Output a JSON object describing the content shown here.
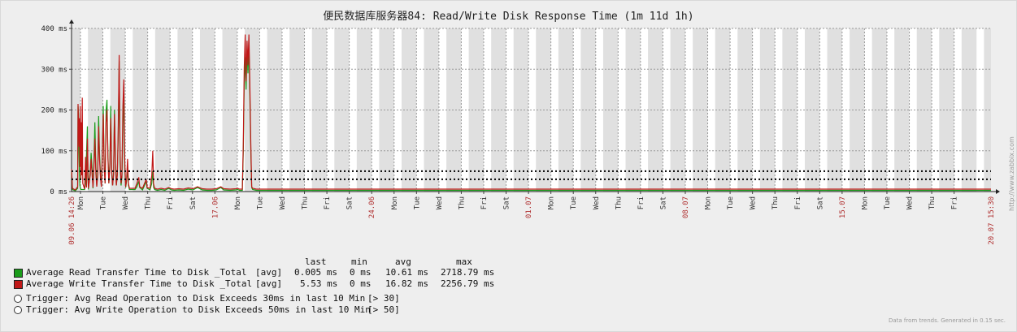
{
  "chart_data": {
    "type": "line",
    "title": "便民数据库服务器84: Read/Write Disk Response Time (1m 11d 1h)",
    "y_ticks": [
      "0 ms",
      "100 ms",
      "200 ms",
      "300 ms",
      "400 ms"
    ],
    "ylim": [
      0,
      400
    ],
    "y_unit": "ms",
    "x_range": [
      "2022-06-09 14:26",
      "2022-07-20 15:30"
    ],
    "x_start_label": "09.06 14:26",
    "x_end_label": "20.07 15:30",
    "x_day_labels": [
      "Mon",
      "Tue",
      "Wed",
      "Thu",
      "Fri",
      "Sat",
      "17.06",
      "Mon",
      "Tue",
      "Wed",
      "Thu",
      "Fri",
      "Sat",
      "24.06",
      "Mon",
      "Tue",
      "Wed",
      "Thu",
      "Fri",
      "Sat",
      "01.07",
      "Mon",
      "Tue",
      "Wed",
      "Thu",
      "Fri",
      "Sat",
      "08.07",
      "Mon",
      "Tue",
      "Wed",
      "Thu",
      "Fri",
      "Sat",
      "15.07",
      "Mon",
      "Tue",
      "Wed",
      "Thu",
      "Fri"
    ],
    "x_day_label_colors": {
      "date": "#b03030",
      "day": "#333333"
    },
    "grid": true,
    "background": {
      "day": "#e0e0e0",
      "night": "#ffffff"
    },
    "series": [
      {
        "name": "Average Read Transfer Time to Disk _Total",
        "color": "#1a9c1a",
        "points": [
          [
            0,
            50
          ],
          [
            0.3,
            40
          ],
          [
            1,
            5
          ],
          [
            4,
            2
          ],
          [
            6.5,
            8
          ],
          [
            7,
            210
          ],
          [
            7.5,
            190
          ],
          [
            8,
            95
          ],
          [
            8.5,
            40
          ],
          [
            9,
            15
          ],
          [
            10,
            5
          ],
          [
            12,
            5
          ],
          [
            14,
            5
          ],
          [
            15,
            20
          ],
          [
            17,
            160
          ],
          [
            17.5,
            40
          ],
          [
            18,
            5
          ],
          [
            20,
            50
          ],
          [
            21,
            95
          ],
          [
            22,
            55
          ],
          [
            23,
            8
          ],
          [
            24,
            80
          ],
          [
            25,
            170
          ],
          [
            26,
            60
          ],
          [
            27,
            15
          ],
          [
            28,
            45
          ],
          [
            29,
            185
          ],
          [
            30,
            95
          ],
          [
            31,
            40
          ],
          [
            32,
            15
          ],
          [
            33,
            95
          ],
          [
            34,
            210
          ],
          [
            35,
            60
          ],
          [
            36,
            20
          ],
          [
            37,
            200
          ],
          [
            38,
            225
          ],
          [
            39,
            90
          ],
          [
            40,
            20
          ],
          [
            41,
            70
          ],
          [
            42,
            210
          ],
          [
            43,
            50
          ],
          [
            44,
            15
          ],
          [
            45,
            45
          ],
          [
            46,
            200
          ],
          [
            47,
            75
          ],
          [
            48,
            15
          ],
          [
            49,
            45
          ],
          [
            50,
            130
          ],
          [
            51,
            320
          ],
          [
            52,
            70
          ],
          [
            53,
            15
          ],
          [
            54,
            35
          ],
          [
            55,
            160
          ],
          [
            56,
            260
          ],
          [
            57,
            60
          ],
          [
            58,
            10
          ],
          [
            59,
            25
          ],
          [
            60,
            55
          ],
          [
            61,
            15
          ],
          [
            62,
            5
          ],
          [
            64,
            5
          ],
          [
            68,
            5
          ],
          [
            70,
            12
          ],
          [
            72,
            25
          ],
          [
            73,
            10
          ],
          [
            76,
            4
          ],
          [
            80,
            25
          ],
          [
            81,
            8
          ],
          [
            84,
            4
          ],
          [
            86,
            20
          ],
          [
            87,
            50
          ],
          [
            88,
            10
          ],
          [
            89,
            5
          ],
          [
            92,
            3
          ],
          [
            96,
            5
          ],
          [
            100,
            3
          ],
          [
            104,
            8
          ],
          [
            107,
            4
          ],
          [
            110,
            3
          ],
          [
            115,
            4
          ],
          [
            120,
            3
          ],
          [
            125,
            6
          ],
          [
            130,
            4
          ],
          [
            135,
            10
          ],
          [
            140,
            4
          ],
          [
            145,
            3
          ],
          [
            150,
            3
          ],
          [
            155,
            4
          ],
          [
            160,
            10
          ],
          [
            163,
            4
          ],
          [
            170,
            3
          ],
          [
            176,
            4
          ],
          [
            178,
            5
          ],
          [
            180,
            3
          ],
          [
            183,
            3
          ],
          [
            184,
            100
          ],
          [
            185,
            260
          ],
          [
            186,
            330
          ],
          [
            187,
            250
          ],
          [
            188,
            350
          ],
          [
            189,
            290
          ],
          [
            190,
            360
          ],
          [
            191,
            240
          ],
          [
            192,
            100
          ],
          [
            193,
            10
          ],
          [
            194,
            5
          ],
          [
            198,
            3
          ],
          [
            210,
            3
          ],
          [
            230,
            3
          ],
          [
            260,
            3
          ],
          [
            290,
            3
          ],
          [
            320,
            3
          ],
          [
            350,
            3
          ],
          [
            380,
            3
          ],
          [
            410,
            3
          ],
          [
            440,
            3
          ],
          [
            470,
            3
          ],
          [
            500,
            3
          ],
          [
            530,
            3
          ],
          [
            560,
            3
          ],
          [
            590,
            3
          ],
          [
            620,
            3
          ],
          [
            650,
            3
          ],
          [
            680,
            3
          ],
          [
            710,
            3
          ],
          [
            740,
            3
          ],
          [
            770,
            3
          ],
          [
            800,
            3
          ],
          [
            830,
            3
          ],
          [
            860,
            3
          ],
          [
            890,
            3
          ],
          [
            920,
            3
          ],
          [
            950,
            3
          ],
          [
            985,
            3
          ]
        ]
      },
      {
        "name": "Average Write Transfer Time to Disk _Total",
        "color": "#c01818",
        "points": [
          [
            0,
            55
          ],
          [
            0.3,
            45
          ],
          [
            1,
            8
          ],
          [
            4,
            4
          ],
          [
            6.5,
            12
          ],
          [
            7,
            215
          ],
          [
            7.5,
            170
          ],
          [
            8,
            110
          ],
          [
            8.5,
            180
          ],
          [
            9,
            60
          ],
          [
            9.5,
            210
          ],
          [
            10,
            30
          ],
          [
            10.5,
            170
          ],
          [
            11,
            40
          ],
          [
            11.5,
            230
          ],
          [
            12,
            20
          ],
          [
            14,
            6
          ],
          [
            15,
            85
          ],
          [
            16,
            10
          ],
          [
            17,
            130
          ],
          [
            18,
            8
          ],
          [
            20,
            40
          ],
          [
            21,
            80
          ],
          [
            22,
            40
          ],
          [
            23,
            10
          ],
          [
            24,
            60
          ],
          [
            25,
            130
          ],
          [
            26,
            45
          ],
          [
            27,
            12
          ],
          [
            28,
            40
          ],
          [
            29,
            160
          ],
          [
            30,
            80
          ],
          [
            31,
            35
          ],
          [
            32,
            12
          ],
          [
            33,
            85
          ],
          [
            34,
            190
          ],
          [
            35,
            55
          ],
          [
            36,
            20
          ],
          [
            37,
            170
          ],
          [
            38,
            200
          ],
          [
            39,
            80
          ],
          [
            40,
            20
          ],
          [
            41,
            60
          ],
          [
            42,
            180
          ],
          [
            43,
            50
          ],
          [
            44,
            15
          ],
          [
            45,
            40
          ],
          [
            46,
            190
          ],
          [
            47,
            70
          ],
          [
            48,
            15
          ],
          [
            49,
            40
          ],
          [
            50,
            150
          ],
          [
            51,
            335
          ],
          [
            52,
            90
          ],
          [
            53,
            20
          ],
          [
            54,
            40
          ],
          [
            55,
            210
          ],
          [
            56,
            275
          ],
          [
            57,
            80
          ],
          [
            58,
            12
          ],
          [
            59,
            30
          ],
          [
            60,
            80
          ],
          [
            61,
            20
          ],
          [
            62,
            8
          ],
          [
            64,
            8
          ],
          [
            68,
            8
          ],
          [
            70,
            20
          ],
          [
            72,
            35
          ],
          [
            73,
            12
          ],
          [
            76,
            8
          ],
          [
            80,
            30
          ],
          [
            81,
            10
          ],
          [
            84,
            8
          ],
          [
            86,
            40
          ],
          [
            87,
            100
          ],
          [
            88,
            20
          ],
          [
            89,
            8
          ],
          [
            92,
            6
          ],
          [
            96,
            8
          ],
          [
            100,
            6
          ],
          [
            104,
            10
          ],
          [
            107,
            7
          ],
          [
            110,
            6
          ],
          [
            115,
            7
          ],
          [
            120,
            6
          ],
          [
            125,
            9
          ],
          [
            130,
            7
          ],
          [
            135,
            12
          ],
          [
            140,
            7
          ],
          [
            145,
            6
          ],
          [
            150,
            6
          ],
          [
            155,
            7
          ],
          [
            160,
            12
          ],
          [
            163,
            7
          ],
          [
            170,
            6
          ],
          [
            176,
            7
          ],
          [
            178,
            8
          ],
          [
            180,
            6
          ],
          [
            183,
            6
          ],
          [
            184,
            120
          ],
          [
            185,
            300
          ],
          [
            186,
            385
          ],
          [
            187,
            270
          ],
          [
            188,
            370
          ],
          [
            189,
            310
          ],
          [
            190,
            385
          ],
          [
            191,
            270
          ],
          [
            192,
            120
          ],
          [
            193,
            12
          ],
          [
            194,
            8
          ],
          [
            198,
            6
          ],
          [
            210,
            6
          ],
          [
            230,
            6
          ],
          [
            260,
            6
          ],
          [
            290,
            6
          ],
          [
            320,
            6
          ],
          [
            350,
            6
          ],
          [
            380,
            6
          ],
          [
            410,
            6
          ],
          [
            440,
            6
          ],
          [
            470,
            6
          ],
          [
            500,
            6
          ],
          [
            530,
            6
          ],
          [
            560,
            6
          ],
          [
            590,
            6
          ],
          [
            620,
            6
          ],
          [
            650,
            6
          ],
          [
            680,
            6
          ],
          [
            710,
            6
          ],
          [
            740,
            6
          ],
          [
            770,
            6
          ],
          [
            800,
            6
          ],
          [
            830,
            6
          ],
          [
            860,
            6
          ],
          [
            890,
            6
          ],
          [
            920,
            6
          ],
          [
            950,
            6
          ],
          [
            985,
            6
          ]
        ]
      }
    ],
    "thresholds": [
      {
        "value": 30,
        "color": "#000000"
      },
      {
        "value": 50,
        "color": "#000000"
      }
    ],
    "x_point_total": 985
  },
  "legend": {
    "headers": [
      "last",
      "min",
      "avg",
      "max"
    ],
    "items": [
      {
        "label": "Average Read Transfer Time to Disk _Total",
        "func": "[avg]",
        "last": "0.005 ms",
        "min": "0 ms",
        "avg": "10.61 ms",
        "max": "2718.79 ms",
        "color": "#1a9c1a"
      },
      {
        "label": "Average Write Transfer Time to Disk _Total",
        "func": "[avg]",
        "last": "5.53 ms",
        "min": "0 ms",
        "avg": "16.82 ms",
        "max": "2256.79 ms",
        "color": "#c01818"
      }
    ],
    "triggers": [
      {
        "label": "Trigger: Avg Read Operation to Disk Exceeds 30ms in last 10 Min",
        "value": "[> 30]"
      },
      {
        "label": "Trigger: Avg Write Operation to Disk Exceeds 50ms in last 10 Min",
        "value": "[> 50]"
      }
    ]
  },
  "watermark": "http://www.zabbix.com",
  "footer": "Data from trends. Generated in 0.15 sec."
}
